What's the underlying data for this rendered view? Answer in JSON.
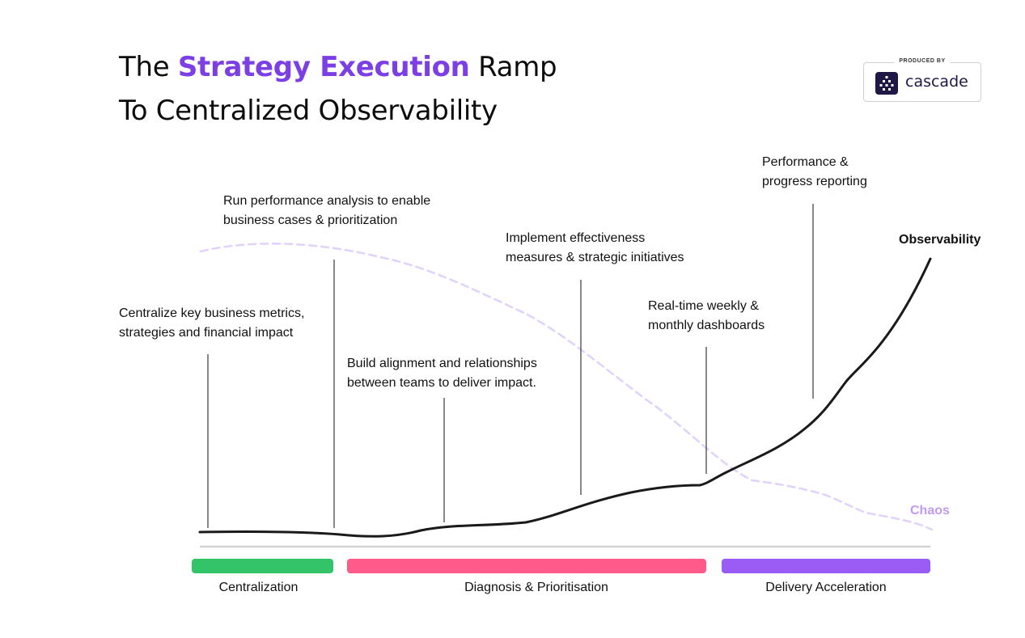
{
  "title": {
    "pre": "The ",
    "accent": "Strategy Execution",
    "post": " Ramp",
    "line2": "To Centralized Observability"
  },
  "badge": {
    "produced_by": "PRODUCED BY",
    "brand": "cascade"
  },
  "annotations": [
    {
      "line1": "Centralize key business metrics,",
      "line2": "strategies and financial impact"
    },
    {
      "line1": "Run performance analysis to enable",
      "line2": "business cases & prioritization"
    },
    {
      "line1": "Build alignment and relationships",
      "line2": "between teams to deliver impact."
    },
    {
      "line1": "Implement effectiveness",
      "line2": "measures & strategic initiatives"
    },
    {
      "line1": "Real-time weekly &",
      "line2": "monthly dashboards"
    },
    {
      "line1": "Performance &",
      "line2": "progress reporting"
    }
  ],
  "curves": {
    "observability": "Observability",
    "chaos": "Chaos"
  },
  "phases": [
    {
      "label": "Centralization",
      "color": "#33c46a"
    },
    {
      "label": "Diagnosis & Prioritisation",
      "color": "#ff5a8a"
    },
    {
      "label": "Delivery Acceleration",
      "color": "#9b5cf6"
    }
  ],
  "colors": {
    "accent": "#7b3fe4",
    "observability_line": "#1a1a1a",
    "chaos_line": "#e0d2fb",
    "baseline": "#d3d3d3"
  }
}
